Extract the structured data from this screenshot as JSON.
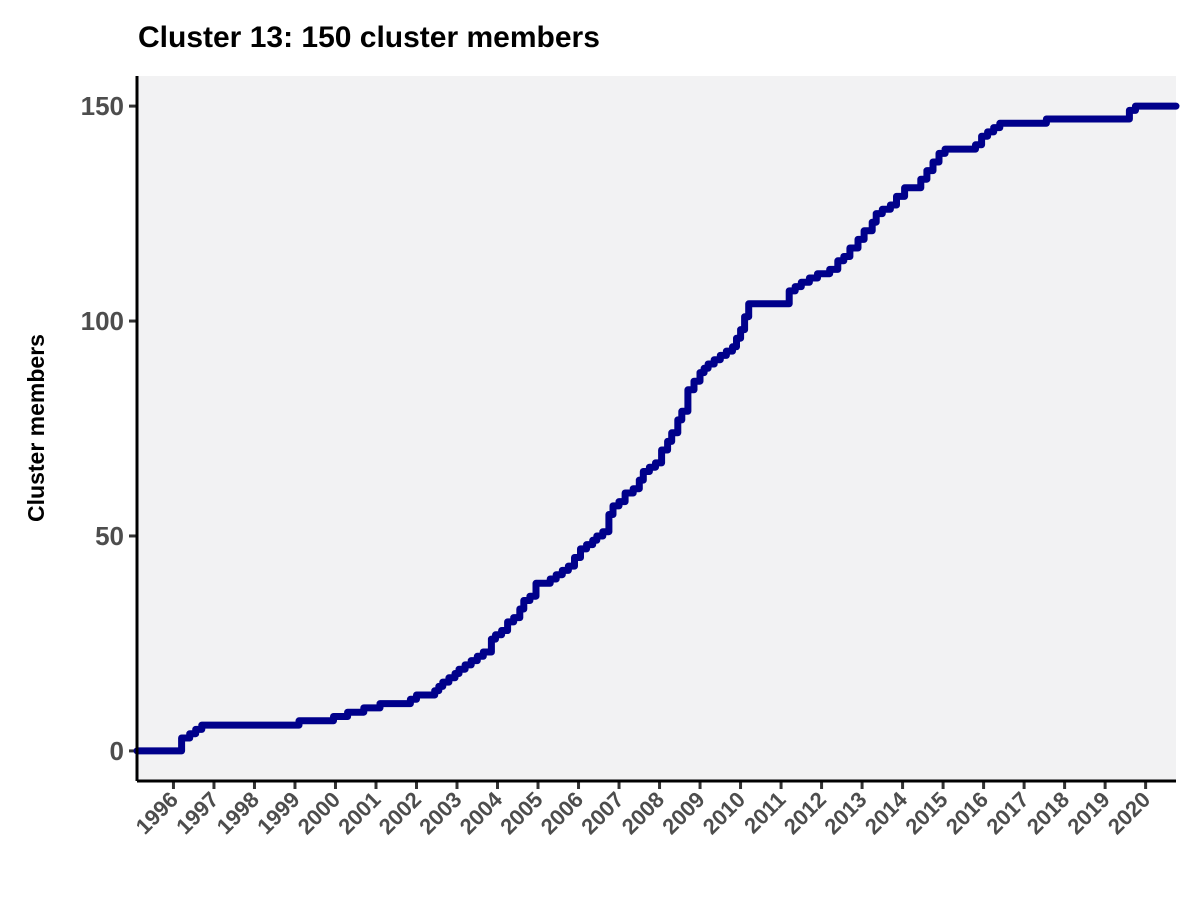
{
  "chart_data": {
    "type": "line",
    "step": true,
    "title": "Cluster 13: 150 cluster members",
    "xlabel": "",
    "ylabel": "Cluster members",
    "xlim": [
      1995.1,
      2020.75
    ],
    "ylim": [
      -7,
      157
    ],
    "yticks": [
      0,
      50,
      100,
      150
    ],
    "xticks": [
      "1996",
      "1997",
      "1998",
      "1999",
      "2000",
      "2001",
      "2002",
      "2003",
      "2004",
      "2005",
      "2006",
      "2007",
      "2008",
      "2009",
      "2010",
      "2011",
      "2012",
      "2013",
      "2014",
      "2015",
      "2016",
      "2017",
      "2018",
      "2019",
      "2020"
    ],
    "grid": false,
    "legend": "none",
    "colors": {
      "line": "#00008b",
      "panel": "#f2f2f3",
      "axis": "#000000"
    },
    "series": [
      {
        "x": [
          1995.1,
          1996.15,
          1996.2,
          1996.4,
          1996.55,
          1996.7,
          1998.3,
          1999.1,
          1999.7,
          1999.95,
          2000.3,
          2000.7,
          2001.1,
          2001.75,
          2001.85,
          2002.0,
          2002.45,
          2002.55,
          2002.65,
          2002.8,
          2002.95,
          2003.05,
          2003.2,
          2003.35,
          2003.5,
          2003.65,
          2003.85,
          2003.95,
          2004.1,
          2004.25,
          2004.4,
          2004.55,
          2004.65,
          2004.8,
          2004.95,
          2005.1,
          2005.3,
          2005.45,
          2005.6,
          2005.75,
          2005.9,
          2006.05,
          2006.2,
          2006.35,
          2006.45,
          2006.6,
          2006.75,
          2006.85,
          2007.0,
          2007.15,
          2007.35,
          2007.5,
          2007.6,
          2007.75,
          2007.9,
          2008.05,
          2008.2,
          2008.3,
          2008.45,
          2008.55,
          2008.7,
          2008.85,
          2009.0,
          2009.1,
          2009.2,
          2009.35,
          2009.5,
          2009.65,
          2009.8,
          2009.9,
          2010.0,
          2010.1,
          2010.2,
          2010.35,
          2011.1,
          2011.2,
          2011.35,
          2011.5,
          2011.7,
          2011.9,
          2012.2,
          2012.4,
          2012.55,
          2012.7,
          2012.9,
          2013.05,
          2013.25,
          2013.35,
          2013.5,
          2013.7,
          2013.85,
          2014.05,
          2014.25,
          2014.45,
          2014.6,
          2014.75,
          2014.9,
          2015.05,
          2015.3,
          2015.55,
          2015.8,
          2015.95,
          2016.1,
          2016.25,
          2016.4,
          2017.45,
          2017.55,
          2019.35,
          2019.6,
          2019.75,
          2020.75
        ],
        "y": [
          0,
          0,
          3,
          4,
          5,
          6,
          6,
          7,
          7,
          8,
          9,
          10,
          11,
          11,
          12,
          13,
          14,
          15,
          16,
          17,
          18,
          19,
          20,
          21,
          22,
          23,
          26,
          27,
          28,
          30,
          31,
          33,
          35,
          36,
          39,
          39,
          40,
          41,
          42,
          43,
          45,
          47,
          48,
          49,
          50,
          51,
          55,
          57,
          58,
          60,
          61,
          63,
          65,
          66,
          67,
          70,
          72,
          74,
          77,
          79,
          84,
          86,
          88,
          89,
          90,
          91,
          92,
          93,
          94,
          96,
          98,
          101,
          104,
          104,
          104,
          107,
          108,
          109,
          110,
          111,
          112,
          114,
          115,
          117,
          119,
          121,
          123,
          125,
          126,
          127,
          129,
          131,
          131,
          133,
          135,
          137,
          139,
          140,
          140,
          140,
          141,
          143,
          144,
          145,
          146,
          146,
          147,
          147,
          149,
          150,
          150
        ]
      }
    ]
  }
}
